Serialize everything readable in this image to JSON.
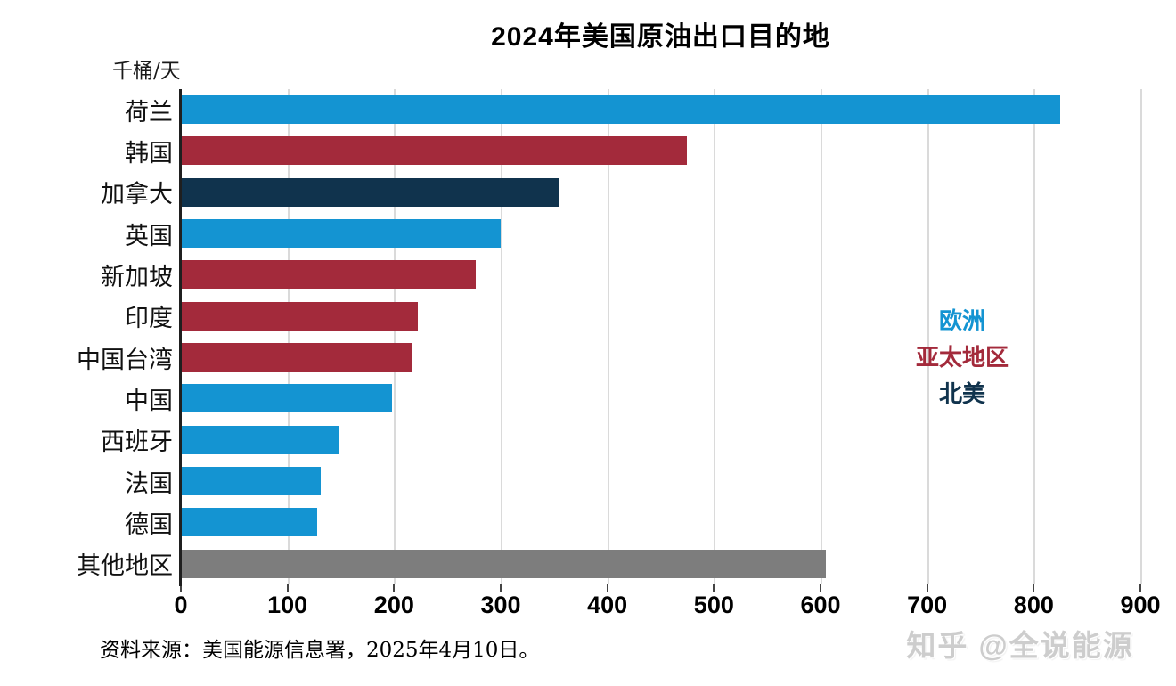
{
  "title": "2024年美国原油出口目的地",
  "unit_label": "千桶/天",
  "source_note": "资料来源：美国能源信息署，2025年4月10日。",
  "watermark": "知乎 @全说能源",
  "palette": {
    "blue": "#1494d2",
    "red": "#a32a3b",
    "navy": "#10334d",
    "gray": "#7d7d7d",
    "grid": "#dadada",
    "axis": "#1f1f1f"
  },
  "legend": [
    {
      "label": "欧洲",
      "color_key": "blue"
    },
    {
      "label": "亚太地区",
      "color_key": "red"
    },
    {
      "label": "北美",
      "color_key": "navy"
    }
  ],
  "chart_data": {
    "type": "bar",
    "orientation": "horizontal",
    "title": "2024年美国原油出口目的地",
    "xlabel": "千桶/天",
    "categories": [
      "荷兰",
      "韩国",
      "加拿大",
      "英国",
      "新加坡",
      "印度",
      "中国台湾",
      "中国",
      "西班牙",
      "法国",
      "德国",
      "其他地区"
    ],
    "values": [
      825,
      475,
      355,
      300,
      277,
      222,
      217,
      198,
      148,
      131,
      128,
      605
    ],
    "bar_color_keys": [
      "blue",
      "red",
      "navy",
      "blue",
      "red",
      "red",
      "red",
      "blue",
      "blue",
      "blue",
      "blue",
      "gray"
    ],
    "xlim": [
      0,
      900
    ],
    "xticks": [
      0,
      100,
      200,
      300,
      400,
      500,
      600,
      700,
      800,
      900
    ],
    "grid": "vertical",
    "legend_position": "right-center"
  }
}
